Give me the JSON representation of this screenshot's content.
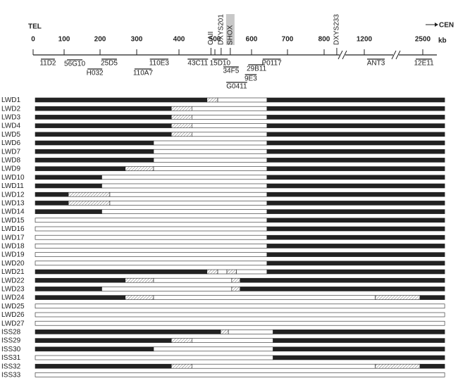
{
  "axis": {
    "left_label": "TEL",
    "right_label": "CEN",
    "unit": "kb",
    "ticks": [
      0,
      100,
      200,
      300,
      400,
      500,
      600,
      700,
      800,
      1200,
      2500
    ]
  },
  "markers": [
    {
      "label": "CAII",
      "position": 489,
      "highlight": false
    },
    {
      "label": "DXYS201",
      "position": 517,
      "highlight": false
    },
    {
      "label": "SHOX",
      "position": 542,
      "highlight": true
    },
    {
      "label": "DXYS233",
      "position": 926,
      "highlight": false
    }
  ],
  "clones": [
    {
      "label": "11D2",
      "from": 25,
      "to": 70
    },
    {
      "label": "56G10",
      "from": 108,
      "to": 151
    },
    {
      "label": "H032",
      "from": 165,
      "to": 206
    },
    {
      "label": "25D5",
      "from": 204,
      "to": 246
    },
    {
      "label": "110A7",
      "from": 294,
      "to": 335
    },
    {
      "label": "110E3",
      "from": 331,
      "to": 375
    },
    {
      "label": "43C11",
      "from": 424,
      "to": 481
    },
    {
      "label": "15D10",
      "from": 493,
      "to": 535
    },
    {
      "label": "34F5",
      "from": 523,
      "to": 565
    },
    {
      "label": "G0411",
      "from": 531,
      "to": 588
    },
    {
      "label": "9E3",
      "from": 582,
      "to": 614
    },
    {
      "label": "29B11",
      "from": 591,
      "to": 637
    },
    {
      "label": "P0117",
      "from": 631,
      "to": 681
    },
    {
      "label": "ANT3",
      "from": 1263,
      "to": 1655
    },
    {
      "label": "12E11",
      "from": 2344,
      "to": 2705
    }
  ],
  "rows": [
    {
      "label": "LWD1",
      "segments": [
        {
          "from": 0,
          "to": 472,
          "fill": "#222222"
        },
        {
          "from": 472,
          "to": 502,
          "fill": "hatch"
        },
        {
          "from": 502,
          "to": 637,
          "fill": "#ffffff"
        },
        {
          "from": 637,
          "to": 2940,
          "fill": "#222222"
        }
      ]
    },
    {
      "label": "LWD2",
      "segments": [
        {
          "from": 0,
          "to": 377,
          "fill": "#222222"
        },
        {
          "from": 377,
          "to": 430,
          "fill": "hatch"
        },
        {
          "from": 430,
          "to": 637,
          "fill": "#ffffff"
        },
        {
          "from": 637,
          "to": 2940,
          "fill": "#222222"
        }
      ]
    },
    {
      "label": "LWD3",
      "segments": [
        {
          "from": 0,
          "to": 377,
          "fill": "#222222"
        },
        {
          "from": 377,
          "to": 430,
          "fill": "hatch"
        },
        {
          "from": 430,
          "to": 637,
          "fill": "#ffffff"
        },
        {
          "from": 637,
          "to": 2940,
          "fill": "#222222"
        }
      ]
    },
    {
      "label": "LWD4",
      "segments": [
        {
          "from": 0,
          "to": 377,
          "fill": "#222222"
        },
        {
          "from": 377,
          "to": 430,
          "fill": "hatch"
        },
        {
          "from": 430,
          "to": 637,
          "fill": "#ffffff"
        },
        {
          "from": 637,
          "to": 2940,
          "fill": "#222222"
        }
      ]
    },
    {
      "label": "LWD5",
      "segments": [
        {
          "from": 0,
          "to": 377,
          "fill": "#222222"
        },
        {
          "from": 377,
          "to": 430,
          "fill": "hatch"
        },
        {
          "from": 430,
          "to": 637,
          "fill": "#ffffff"
        },
        {
          "from": 637,
          "to": 2940,
          "fill": "#222222"
        }
      ]
    },
    {
      "label": "LWD6",
      "segments": [
        {
          "from": 0,
          "to": 335,
          "fill": "#222222"
        },
        {
          "from": 335,
          "to": 637,
          "fill": "#ffffff"
        },
        {
          "from": 637,
          "to": 2940,
          "fill": "#222222"
        }
      ]
    },
    {
      "label": "LWD7",
      "segments": [
        {
          "from": 0,
          "to": 335,
          "fill": "#222222"
        },
        {
          "from": 335,
          "to": 637,
          "fill": "#ffffff"
        },
        {
          "from": 637,
          "to": 2940,
          "fill": "#222222"
        }
      ]
    },
    {
      "label": "LWD8",
      "segments": [
        {
          "from": 0,
          "to": 335,
          "fill": "#222222"
        },
        {
          "from": 335,
          "to": 637,
          "fill": "#ffffff"
        },
        {
          "from": 637,
          "to": 2940,
          "fill": "#222222"
        }
      ]
    },
    {
      "label": "LWD9",
      "segments": [
        {
          "from": 0,
          "to": 263,
          "fill": "#222222"
        },
        {
          "from": 263,
          "to": 335,
          "fill": "hatch"
        },
        {
          "from": 335,
          "to": 637,
          "fill": "#ffffff"
        },
        {
          "from": 637,
          "to": 2940,
          "fill": "#222222"
        }
      ]
    },
    {
      "label": "LWD10",
      "segments": [
        {
          "from": 0,
          "to": 199,
          "fill": "#222222"
        },
        {
          "from": 199,
          "to": 637,
          "fill": "#ffffff"
        },
        {
          "from": 637,
          "to": 2940,
          "fill": "#222222"
        }
      ]
    },
    {
      "label": "LWD11",
      "segments": [
        {
          "from": 0,
          "to": 199,
          "fill": "#222222"
        },
        {
          "from": 199,
          "to": 637,
          "fill": "#ffffff"
        },
        {
          "from": 637,
          "to": 2940,
          "fill": "#222222"
        }
      ]
    },
    {
      "label": "LWD12",
      "segments": [
        {
          "from": 0,
          "to": 106,
          "fill": "#222222"
        },
        {
          "from": 106,
          "to": 221,
          "fill": "hatch"
        },
        {
          "from": 221,
          "to": 637,
          "fill": "#ffffff"
        },
        {
          "from": 637,
          "to": 2940,
          "fill": "#222222"
        }
      ]
    },
    {
      "label": "LWD13",
      "segments": [
        {
          "from": 0,
          "to": 106,
          "fill": "#222222"
        },
        {
          "from": 106,
          "to": 221,
          "fill": "hatch"
        },
        {
          "from": 221,
          "to": 637,
          "fill": "#ffffff"
        },
        {
          "from": 637,
          "to": 2940,
          "fill": "#222222"
        }
      ]
    },
    {
      "label": "LWD14",
      "segments": [
        {
          "from": 0,
          "to": 199,
          "fill": "#222222"
        },
        {
          "from": 199,
          "to": 637,
          "fill": "#ffffff"
        },
        {
          "from": 637,
          "to": 2940,
          "fill": "#222222"
        }
      ]
    },
    {
      "label": "LWD15",
      "segments": [
        {
          "from": 0,
          "to": 637,
          "fill": "#ffffff"
        },
        {
          "from": 637,
          "to": 2940,
          "fill": "#222222"
        }
      ]
    },
    {
      "label": "LWD16",
      "segments": [
        {
          "from": 0,
          "to": 637,
          "fill": "#ffffff"
        },
        {
          "from": 637,
          "to": 2940,
          "fill": "#222222"
        }
      ]
    },
    {
      "label": "LWD17",
      "segments": [
        {
          "from": 0,
          "to": 637,
          "fill": "#ffffff"
        },
        {
          "from": 637,
          "to": 2940,
          "fill": "#222222"
        }
      ]
    },
    {
      "label": "LWD18",
      "segments": [
        {
          "from": 0,
          "to": 637,
          "fill": "#ffffff"
        },
        {
          "from": 637,
          "to": 2940,
          "fill": "#222222"
        }
      ]
    },
    {
      "label": "LWD19",
      "segments": [
        {
          "from": 0,
          "to": 637,
          "fill": "#ffffff"
        },
        {
          "from": 637,
          "to": 2940,
          "fill": "#222222"
        }
      ]
    },
    {
      "label": "LWD20",
      "segments": [
        {
          "from": 0,
          "to": 637,
          "fill": "#ffffff"
        },
        {
          "from": 637,
          "to": 2940,
          "fill": "#222222"
        }
      ]
    },
    {
      "label": "LWD21",
      "segments": [
        {
          "from": 0,
          "to": 472,
          "fill": "#222222"
        },
        {
          "from": 472,
          "to": 502,
          "fill": "hatch"
        },
        {
          "from": 502,
          "to": 527,
          "fill": "#ffffff"
        },
        {
          "from": 527,
          "to": 553,
          "fill": "hatch"
        },
        {
          "from": 553,
          "to": 637,
          "fill": "#ffffff"
        },
        {
          "from": 637,
          "to": 2940,
          "fill": "#222222"
        }
      ]
    },
    {
      "label": "LWD22",
      "segments": [
        {
          "from": 0,
          "to": 263,
          "fill": "#222222"
        },
        {
          "from": 263,
          "to": 335,
          "fill": "hatch"
        },
        {
          "from": 335,
          "to": 540,
          "fill": "#ffffff"
        },
        {
          "from": 540,
          "to": 563,
          "fill": "hatch"
        },
        {
          "from": 563,
          "to": 2940,
          "fill": "#222222"
        }
      ]
    },
    {
      "label": "LWD23",
      "segments": [
        {
          "from": 0,
          "to": 199,
          "fill": "#222222"
        },
        {
          "from": 199,
          "to": 540,
          "fill": "#ffffff"
        },
        {
          "from": 540,
          "to": 563,
          "fill": "hatch"
        },
        {
          "from": 563,
          "to": 2940,
          "fill": "#222222"
        }
      ]
    },
    {
      "label": "LWD24",
      "segments": [
        {
          "from": 0,
          "to": 263,
          "fill": "#222222"
        },
        {
          "from": 263,
          "to": 335,
          "fill": "hatch"
        },
        {
          "from": 335,
          "to": 1396,
          "fill": "#ffffff"
        },
        {
          "from": 1396,
          "to": 2391,
          "fill": "hatch"
        },
        {
          "from": 2391,
          "to": 2940,
          "fill": "#222222"
        }
      ]
    },
    {
      "label": "LWD25",
      "segments": [
        {
          "from": 0,
          "to": 2940,
          "fill": "#ffffff"
        }
      ]
    },
    {
      "label": "LWD26",
      "segments": [
        {
          "from": 0,
          "to": 2940,
          "fill": "#ffffff"
        }
      ]
    },
    {
      "label": "LWD27",
      "segments": [
        {
          "from": 0,
          "to": 2940,
          "fill": "#ffffff"
        }
      ]
    },
    {
      "label": "ISS28",
      "segments": [
        {
          "from": 0,
          "to": 510,
          "fill": "#222222"
        },
        {
          "from": 510,
          "to": 531,
          "fill": "hatch"
        },
        {
          "from": 531,
          "to": 654,
          "fill": "#ffffff"
        },
        {
          "from": 654,
          "to": 2940,
          "fill": "#222222"
        }
      ]
    },
    {
      "label": "ISS29",
      "segments": [
        {
          "from": 0,
          "to": 377,
          "fill": "#222222"
        },
        {
          "from": 377,
          "to": 430,
          "fill": "hatch"
        },
        {
          "from": 430,
          "to": 654,
          "fill": "#ffffff"
        },
        {
          "from": 654,
          "to": 2940,
          "fill": "#222222"
        }
      ]
    },
    {
      "label": "ISS30",
      "segments": [
        {
          "from": 0,
          "to": 335,
          "fill": "#222222"
        },
        {
          "from": 335,
          "to": 654,
          "fill": "#ffffff"
        },
        {
          "from": 654,
          "to": 2940,
          "fill": "#222222"
        }
      ]
    },
    {
      "label": "ISS31",
      "segments": [
        {
          "from": 0,
          "to": 654,
          "fill": "#ffffff"
        },
        {
          "from": 654,
          "to": 2940,
          "fill": "#222222"
        }
      ]
    },
    {
      "label": "ISS32",
      "segments": [
        {
          "from": 0,
          "to": 377,
          "fill": "#222222"
        },
        {
          "from": 377,
          "to": 430,
          "fill": "hatch"
        },
        {
          "from": 430,
          "to": 1396,
          "fill": "#ffffff"
        },
        {
          "from": 1396,
          "to": 2391,
          "fill": "hatch"
        },
        {
          "from": 2391,
          "to": 2940,
          "fill": "#222222"
        }
      ]
    },
    {
      "label": "ISS33",
      "segments": [
        {
          "from": 0,
          "to": 2940,
          "fill": "#ffffff"
        }
      ]
    }
  ]
}
